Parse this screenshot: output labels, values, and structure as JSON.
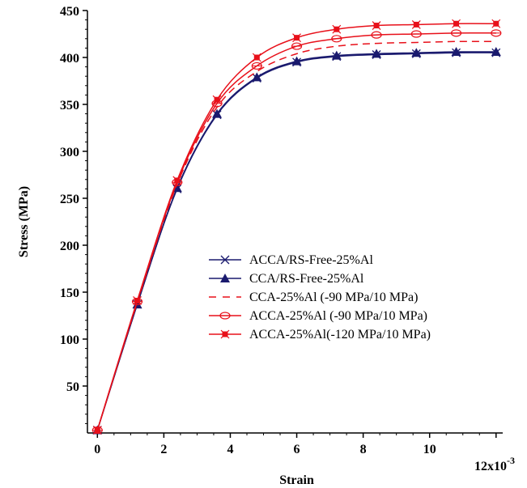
{
  "chart_data": {
    "type": "line",
    "title": "",
    "xlabel": "Strain",
    "ylabel": "Stress (MPa)",
    "x_multiplier": "12x10",
    "x_multiplier_exponent": "-3",
    "xlim": [
      -0.3,
      12.2
    ],
    "ylim": [
      0,
      450
    ],
    "x_ticks": [
      0,
      2,
      4,
      6,
      8,
      10
    ],
    "x_tick_labels": [
      "0",
      "2",
      "4",
      "6",
      "8",
      "10"
    ],
    "y_ticks": [
      50,
      100,
      150,
      200,
      250,
      300,
      350,
      400,
      450
    ],
    "y_tick_labels": [
      "50",
      "100",
      "150",
      "200",
      "250",
      "300",
      "350",
      "400",
      "450"
    ],
    "grid": false,
    "legend_position": "center-right",
    "series": [
      {
        "name": "ACCA/RS-Free-25%Al",
        "color": "#1a1a6e",
        "dash": "solid",
        "marker": "x",
        "x": [
          0,
          1.2,
          2.4,
          3.6,
          4.8,
          6.0,
          7.2,
          8.4,
          9.6,
          10.8,
          12.0
        ],
        "y": [
          3,
          137,
          260,
          339,
          378,
          395,
          401,
          403,
          404,
          405,
          405
        ]
      },
      {
        "name": "CCA/RS-Free-25%Al",
        "color": "#1a1a6e",
        "dash": "solid",
        "marker": "triangle",
        "x": [
          0,
          1.2,
          2.4,
          3.6,
          4.8,
          6.0,
          7.2,
          8.4,
          9.6,
          10.8,
          12.0
        ],
        "y": [
          3,
          137,
          261,
          340,
          379,
          396,
          402,
          404,
          405,
          406,
          406
        ]
      },
      {
        "name": "CCA-25%Al (-90 MPa/10 MPa)",
        "color": "#e8101a",
        "dash": "dashed",
        "marker": "none",
        "x": [
          0,
          1.2,
          2.4,
          3.6,
          4.8,
          6.0,
          7.2,
          8.4,
          9.6,
          10.8,
          12.0
        ],
        "y": [
          3,
          139,
          265,
          347,
          385,
          404,
          412,
          415,
          416,
          417,
          417
        ]
      },
      {
        "name": "ACCA-25%Al (-90 MPa/10 MPa)",
        "color": "#e8101a",
        "dash": "solid",
        "marker": "diamond",
        "x": [
          0,
          1.2,
          2.4,
          3.6,
          4.8,
          6.0,
          7.2,
          8.4,
          9.6,
          10.8,
          12.0
        ],
        "y": [
          3,
          140,
          267,
          351,
          391,
          412,
          420,
          424,
          425,
          426,
          426
        ]
      },
      {
        "name": "ACCA-25%Al(-120 MPa/10 MPa)",
        "color": "#e8101a",
        "dash": "solid",
        "marker": "square-x",
        "x": [
          0,
          1.2,
          2.4,
          3.6,
          4.8,
          6.0,
          7.2,
          8.4,
          9.6,
          10.8,
          12.0
        ],
        "y": [
          3,
          141,
          269,
          355,
          400,
          421,
          430,
          434,
          435,
          436,
          436
        ]
      }
    ]
  }
}
